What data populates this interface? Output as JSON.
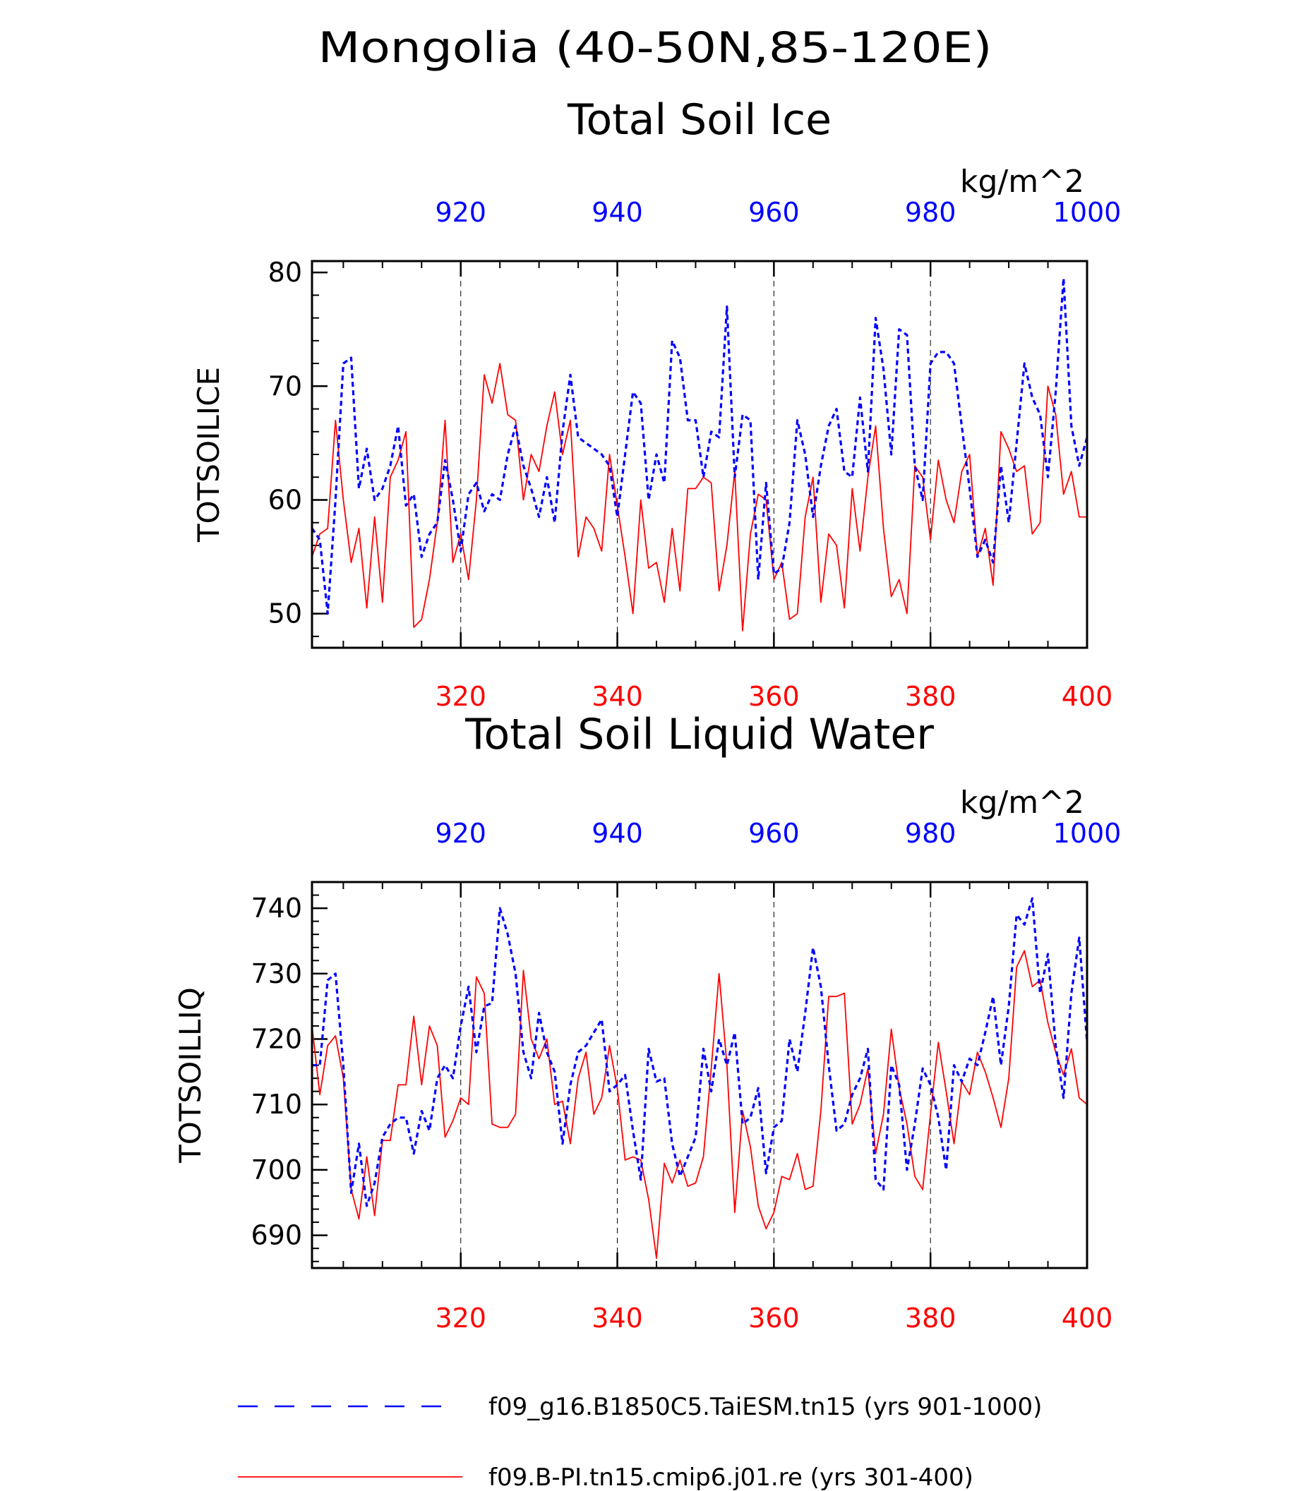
{
  "figure_title": "Mongolia (40-50N,85-120E)",
  "colors": {
    "blue_series": "#0000ff",
    "red_series": "#ff0000",
    "axis": "#000000",
    "grid": "#000000"
  },
  "legend": {
    "blue_label": "f09_g16.B1850C5.TaiESM.tn15 (yrs 901-1000)",
    "red_label": "f09.B-PI.tn15.cmip6.j01.re (yrs 301-400)"
  },
  "chart_data": [
    {
      "type": "line",
      "title": "Total Soil Ice",
      "units": "kg/m^2",
      "ylabel": "TOTSOILICE",
      "ylim": [
        47,
        81
      ],
      "yticks": [
        50,
        60,
        70,
        80
      ],
      "grid": "vertical dashed",
      "bottom_axis": {
        "range": [
          301,
          400
        ],
        "ticks": [
          320,
          340,
          360,
          380,
          400
        ],
        "color": "red"
      },
      "top_axis": {
        "range": [
          901,
          1000
        ],
        "ticks": [
          920,
          940,
          960,
          980,
          1000
        ],
        "color": "blue"
      },
      "series": [
        {
          "axis": "top",
          "style": "dashed",
          "color": "blue",
          "x_start": 901,
          "values": [
            57.5,
            56.5,
            50.0,
            60.0,
            72.0,
            72.5,
            61.0,
            64.5,
            60.0,
            61.0,
            63.0,
            66.5,
            59.5,
            60.5,
            55.0,
            57.0,
            58.0,
            63.5,
            60.0,
            55.5,
            60.5,
            61.5,
            59.0,
            60.5,
            60.0,
            64.0,
            66.5,
            63.0,
            61.0,
            58.5,
            62.0,
            58.0,
            66.0,
            71.0,
            65.5,
            65.0,
            64.5,
            64.0,
            63.0,
            58.5,
            64.0,
            69.5,
            68.5,
            60.0,
            64.0,
            61.5,
            74.0,
            72.5,
            67.0,
            67.0,
            62.0,
            66.0,
            65.5,
            77.0,
            62.0,
            67.5,
            67.0,
            53.0,
            61.5,
            53.5,
            54.0,
            58.0,
            67.0,
            64.0,
            58.5,
            63.0,
            66.5,
            68.0,
            62.5,
            62.0,
            69.0,
            62.5,
            76.0,
            71.5,
            64.0,
            75.0,
            74.5,
            63.0,
            60.0,
            72.0,
            73.0,
            73.0,
            72.0,
            66.5,
            61.0,
            55.0,
            56.5,
            54.5,
            63.0,
            58.0,
            65.0,
            72.0,
            69.0,
            67.5,
            62.0,
            69.5,
            79.5,
            66.5,
            63.0,
            65.5
          ]
        },
        {
          "axis": "bottom",
          "style": "solid",
          "color": "red",
          "x_start": 301,
          "values": [
            55.0,
            57.0,
            57.5,
            67.0,
            60.0,
            54.5,
            57.5,
            50.5,
            58.5,
            51.0,
            62.0,
            63.5,
            66.0,
            48.8,
            49.5,
            53.0,
            58.0,
            67.0,
            54.5,
            57.0,
            53.0,
            60.0,
            71.0,
            68.5,
            72.0,
            67.5,
            67.0,
            60.0,
            64.0,
            62.5,
            66.5,
            69.5,
            64.0,
            67.0,
            55.0,
            58.5,
            57.5,
            55.5,
            64.0,
            59.5,
            55.0,
            50.0,
            60.0,
            54.0,
            54.5,
            51.0,
            57.5,
            52.0,
            61.0,
            61.0,
            62.0,
            61.5,
            52.0,
            56.0,
            62.5,
            48.5,
            57.0,
            60.5,
            60.0,
            53.0,
            54.5,
            49.5,
            50.0,
            58.5,
            62.0,
            51.0,
            57.0,
            56.0,
            50.5,
            61.0,
            55.5,
            62.0,
            66.5,
            57.5,
            51.5,
            53.0,
            50.0,
            63.0,
            62.0,
            56.5,
            63.5,
            60.0,
            58.0,
            62.5,
            64.0,
            55.0,
            57.5,
            52.5,
            66.0,
            64.5,
            62.5,
            63.0,
            57.0,
            58.0,
            70.0,
            67.5,
            60.5,
            62.5,
            58.5,
            58.5
          ]
        }
      ]
    },
    {
      "type": "line",
      "title": "Total Soil Liquid Water",
      "units": "kg/m^2",
      "ylabel": "TOTSOILLIQ",
      "ylim": [
        685,
        744
      ],
      "yticks": [
        690,
        700,
        710,
        720,
        730,
        740
      ],
      "grid": "vertical dashed",
      "bottom_axis": {
        "range": [
          301,
          400
        ],
        "ticks": [
          320,
          340,
          360,
          380,
          400
        ],
        "color": "red"
      },
      "top_axis": {
        "range": [
          901,
          1000
        ],
        "ticks": [
          920,
          940,
          960,
          980,
          1000
        ],
        "color": "blue"
      },
      "series": [
        {
          "axis": "top",
          "style": "dashed",
          "color": "blue",
          "x_start": 901,
          "values": [
            716.0,
            716.0,
            729.0,
            730.0,
            716.0,
            696.5,
            704.0,
            694.5,
            698.0,
            705.0,
            707.0,
            708.0,
            708.0,
            702.5,
            709.0,
            706.0,
            714.0,
            716.0,
            714.0,
            722.0,
            728.0,
            718.0,
            725.0,
            725.5,
            740.0,
            736.0,
            730.0,
            718.0,
            714.0,
            724.0,
            718.0,
            715.0,
            704.0,
            713.0,
            718.0,
            719.0,
            721.0,
            723.0,
            712.0,
            713.0,
            714.5,
            706.0,
            698.5,
            718.5,
            713.5,
            714.0,
            704.0,
            699.0,
            702.0,
            705.0,
            718.5,
            712.0,
            720.0,
            716.0,
            721.0,
            707.0,
            708.0,
            712.5,
            699.5,
            706.5,
            707.5,
            720.0,
            715.0,
            724.0,
            734.0,
            728.0,
            716.0,
            706.0,
            707.0,
            711.5,
            714.0,
            718.5,
            698.5,
            697.0,
            716.0,
            713.0,
            700.0,
            707.0,
            715.5,
            713.0,
            708.0,
            700.0,
            716.0,
            713.5,
            717.0,
            716.0,
            721.0,
            726.5,
            716.0,
            725.0,
            739.0,
            737.5,
            741.5,
            727.0,
            733.0,
            719.0,
            711.0,
            727.0,
            735.5,
            719.5
          ]
        },
        {
          "axis": "bottom",
          "style": "solid",
          "color": "red",
          "x_start": 301,
          "values": [
            722.0,
            711.5,
            719.0,
            720.5,
            714.0,
            697.0,
            692.5,
            702.0,
            693.0,
            704.5,
            704.5,
            713.0,
            713.0,
            723.5,
            713.0,
            722.0,
            719.0,
            705.0,
            707.5,
            711.0,
            710.0,
            729.5,
            727.0,
            707.0,
            706.5,
            706.5,
            708.5,
            730.5,
            720.0,
            717.0,
            720.0,
            710.0,
            710.5,
            704.0,
            714.0,
            718.0,
            708.5,
            711.0,
            719.0,
            712.5,
            701.5,
            702.0,
            701.5,
            695.5,
            686.5,
            701.0,
            698.0,
            701.5,
            697.5,
            698.0,
            702.0,
            715.5,
            730.0,
            716.0,
            693.5,
            709.0,
            703.5,
            694.5,
            691.0,
            693.5,
            699.0,
            698.5,
            702.5,
            697.0,
            697.5,
            709.0,
            726.5,
            726.5,
            727.0,
            707.0,
            710.0,
            715.5,
            702.5,
            708.5,
            721.5,
            712.5,
            707.0,
            699.0,
            697.0,
            708.5,
            719.5,
            712.0,
            704.0,
            713.5,
            711.5,
            718.0,
            715.0,
            711.0,
            706.5,
            714.0,
            731.0,
            733.5,
            728.0,
            729.0,
            722.5,
            718.0,
            714.5,
            718.5,
            711.0,
            710.0
          ]
        }
      ]
    }
  ]
}
